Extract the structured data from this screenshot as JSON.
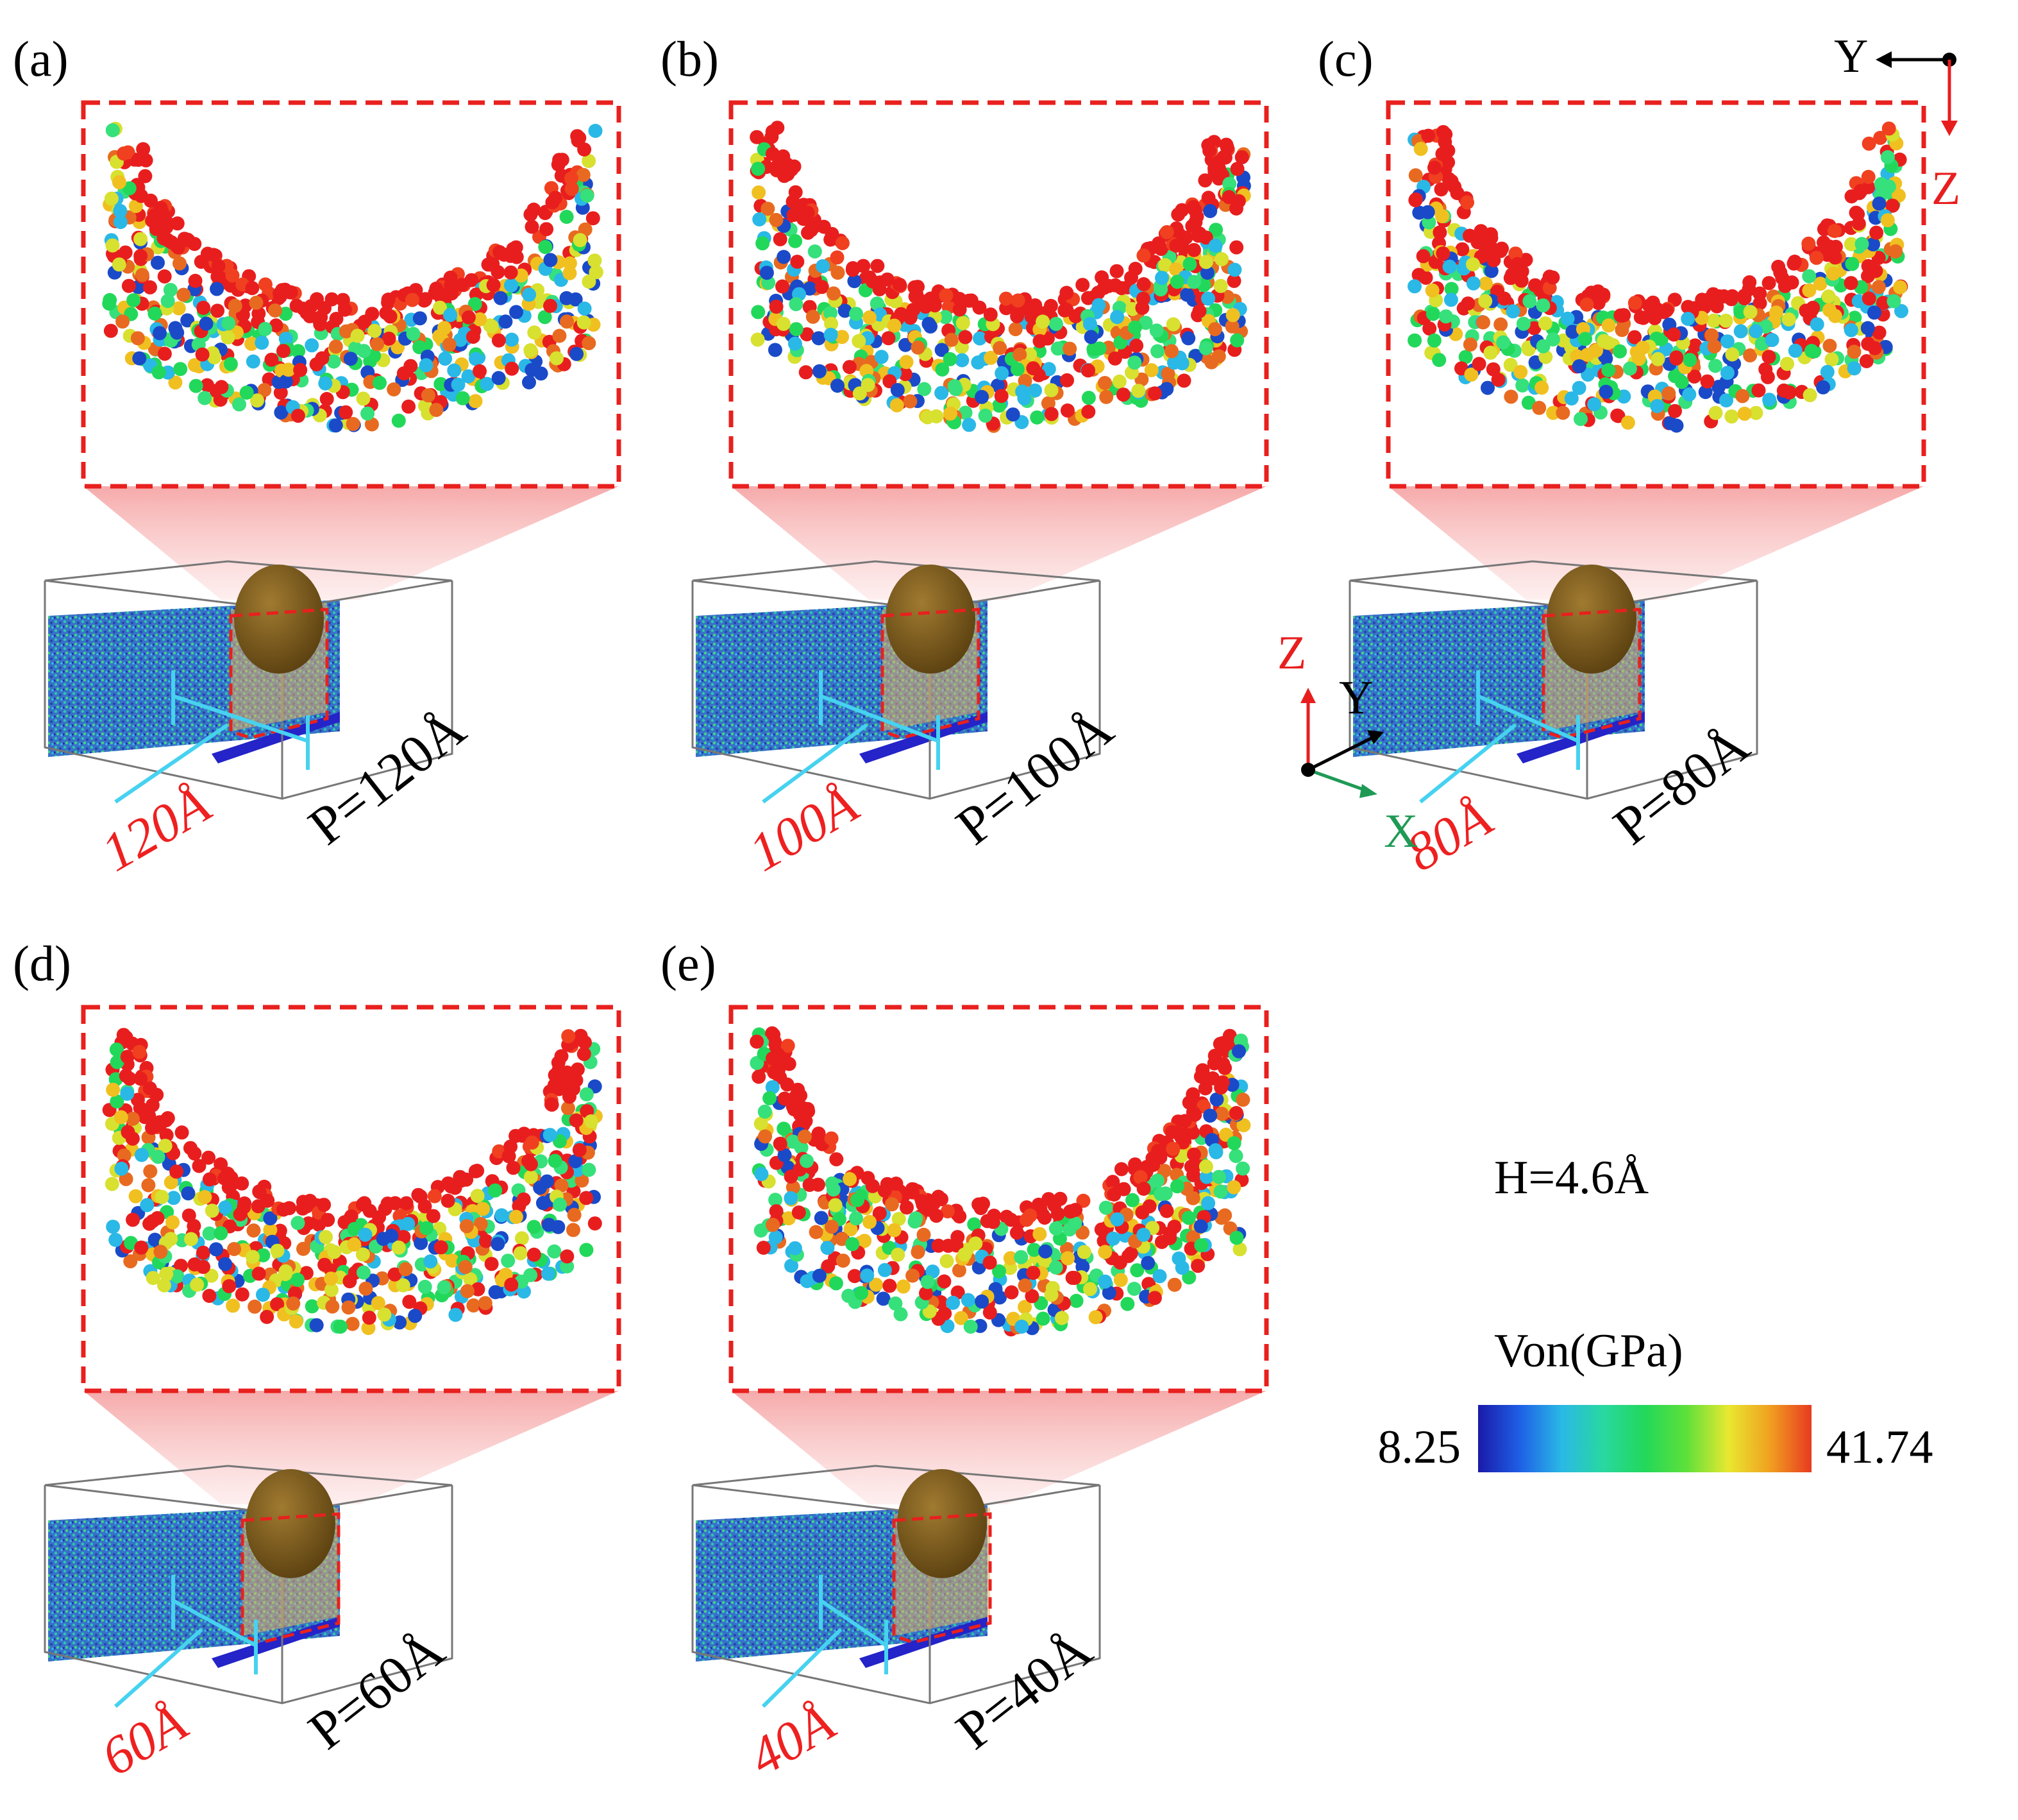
{
  "panels": [
    {
      "id": "a",
      "label": "(a)",
      "cut_label": "120Å",
      "period_label": "P=120Å",
      "cut_scale": 1.0
    },
    {
      "id": "b",
      "label": "(b)",
      "cut_label": "100Å",
      "period_label": "P=100Å",
      "cut_scale": 0.85
    },
    {
      "id": "c",
      "label": "(c)",
      "cut_label": "80Å",
      "period_label": "P=80Å",
      "cut_scale": 0.7
    },
    {
      "id": "d",
      "label": "(d)",
      "cut_label": "60Å",
      "period_label": "P=60Å",
      "cut_scale": 0.55
    },
    {
      "id": "e",
      "label": "(e)",
      "cut_label": "40Å",
      "period_label": "P=40Å",
      "cut_scale": 0.4
    }
  ],
  "axes_2d": {
    "y": "Y",
    "z": "Z"
  },
  "axes_3d": {
    "x": "X",
    "y": "Y",
    "z": "Z"
  },
  "height_label": "H=4.6Å",
  "colorbar": {
    "title": "Von(GPa)",
    "min": "8.25",
    "max": "41.74",
    "stops": [
      "#1a1aa8",
      "#1e5fe6",
      "#2ab8e6",
      "#28d8a0",
      "#22d85a",
      "#5ee03a",
      "#e8e830",
      "#f0a020",
      "#e83a20"
    ]
  },
  "colors": {
    "frame": "#e8201e",
    "cut_text": "#ee2020",
    "arrow": "#46d2f0",
    "axis_red": "#e81e1e",
    "axis_green": "#1e9a55",
    "indenter": "#7a5a1c",
    "substrate": "#2a68c8"
  }
}
